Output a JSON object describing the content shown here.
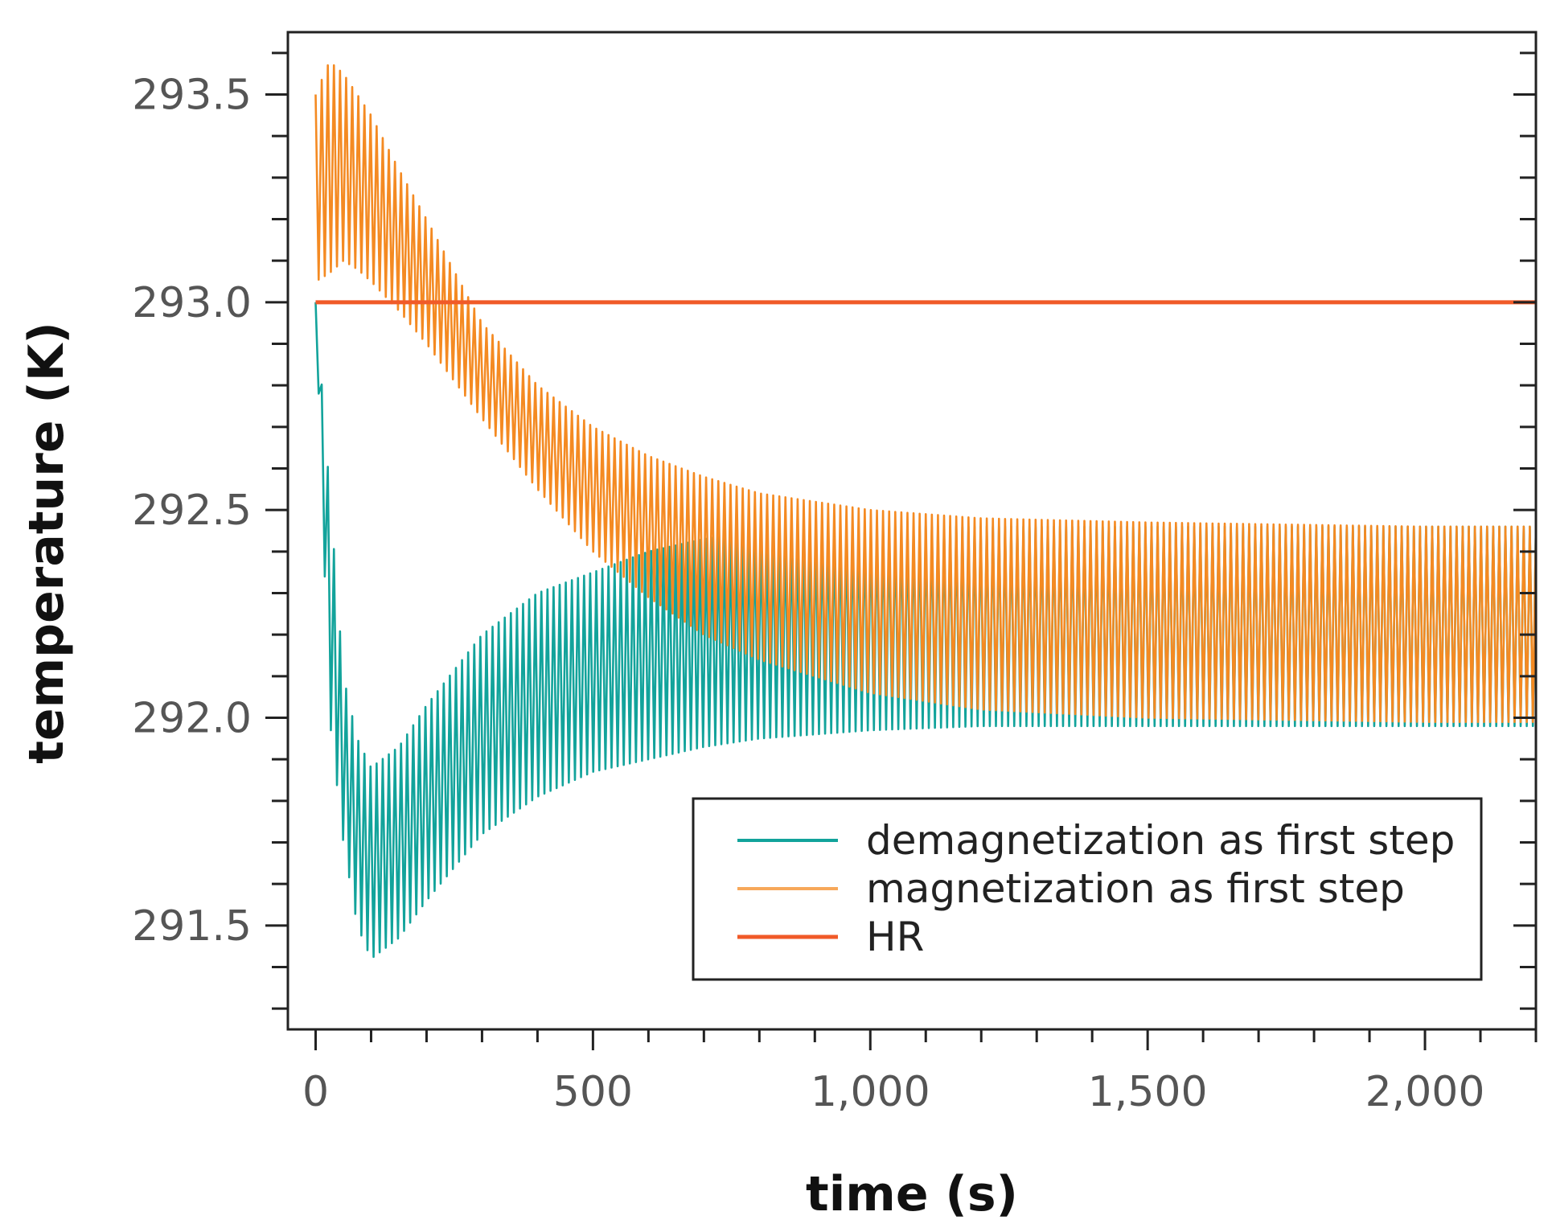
{
  "chart_data": {
    "type": "line",
    "title": "",
    "xlabel": "time (s)",
    "ylabel": "temperature (K)",
    "xlim": [
      -50,
      2200
    ],
    "ylim": [
      291.25,
      293.65
    ],
    "x_ticks": [
      0,
      500,
      1000,
      1500,
      2000
    ],
    "x_tick_labels": [
      "0",
      "500",
      "1,000",
      "1,500",
      "2,000"
    ],
    "y_ticks": [
      291.5,
      292.0,
      292.5,
      293.0,
      293.5
    ],
    "y_tick_labels": [
      "291.5",
      "292.0",
      "292.5",
      "293.0",
      "293.5"
    ],
    "grid": false,
    "legend_position": "lower-right",
    "series": [
      {
        "name": "demagnetization as first step",
        "color": "#12a39b",
        "oscillating": true,
        "x": [
          0,
          25,
          50,
          75,
          100,
          150,
          200,
          300,
          400,
          500,
          600,
          700,
          800,
          1000,
          1200,
          1500,
          2000,
          2200
        ],
        "upper": [
          293.0,
          292.55,
          292.1,
          291.95,
          291.88,
          291.93,
          292.03,
          292.2,
          292.3,
          292.35,
          292.4,
          292.43,
          292.45,
          292.46,
          292.46,
          292.46,
          292.46,
          292.46
        ],
        "lower": [
          293.0,
          292.0,
          291.7,
          291.5,
          291.42,
          291.47,
          291.56,
          291.72,
          291.81,
          291.87,
          291.9,
          291.93,
          291.95,
          291.97,
          291.98,
          291.98,
          291.98,
          291.98
        ]
      },
      {
        "name": "magnetization as first step",
        "color": "#f48a22",
        "oscillating": true,
        "x": [
          0,
          25,
          50,
          75,
          100,
          150,
          200,
          300,
          400,
          500,
          600,
          700,
          800,
          1000,
          1200,
          1500,
          2000,
          2200
        ],
        "upper": [
          293.5,
          293.58,
          293.55,
          293.5,
          293.45,
          293.32,
          293.2,
          292.95,
          292.8,
          292.7,
          292.63,
          292.58,
          292.54,
          292.5,
          292.48,
          292.47,
          292.46,
          292.46
        ],
        "lower": [
          293.05,
          293.07,
          293.1,
          293.08,
          293.05,
          292.98,
          292.9,
          292.72,
          292.55,
          292.4,
          292.29,
          292.2,
          292.14,
          292.06,
          292.02,
          292.0,
          291.99,
          291.99
        ]
      },
      {
        "name": "HR",
        "color": "#f05a28",
        "oscillating": false,
        "x": [
          0,
          2200
        ],
        "values": [
          293.0,
          293.0
        ]
      }
    ]
  }
}
